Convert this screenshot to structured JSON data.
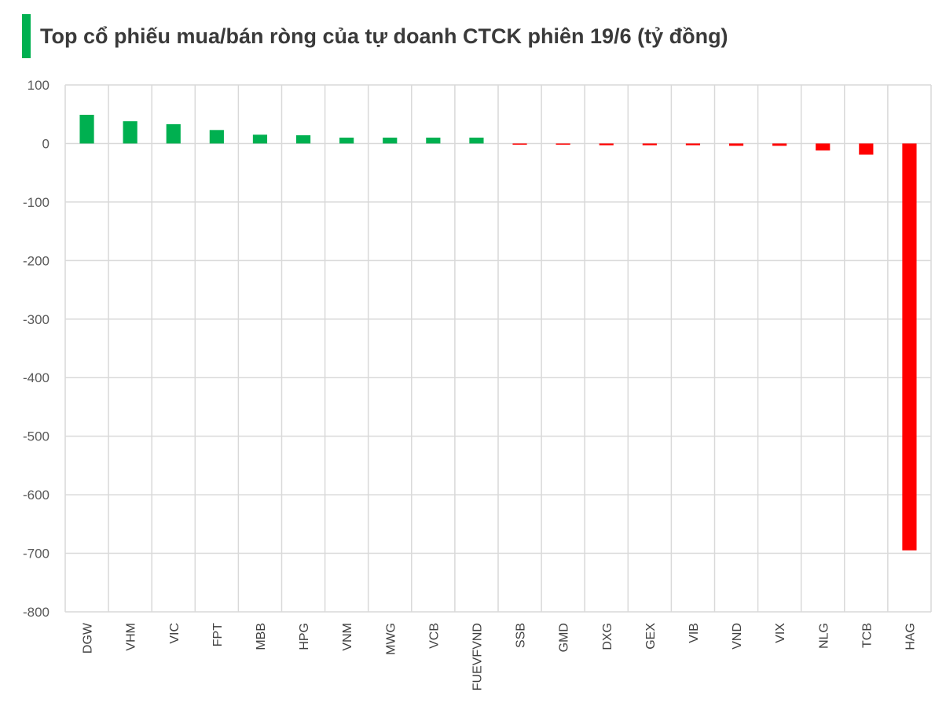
{
  "title": "Top cổ phiếu mua/bán ròng của tự doanh CTCK phiên 19/6 (tỷ đồng)",
  "colors": {
    "accent": "#00b050",
    "positive": "#00b050",
    "negative": "#ff0000",
    "grid": "#d9d9d9"
  },
  "chart_data": {
    "type": "bar",
    "title": "Top cổ phiếu mua/bán ròng của tự doanh CTCK phiên 19/6 (tỷ đồng)",
    "xlabel": "",
    "ylabel": "",
    "ylim": [
      -800,
      100
    ],
    "yticks": [
      100,
      0,
      -100,
      -200,
      -300,
      -400,
      -500,
      -600,
      -700,
      -800
    ],
    "grid": true,
    "legend": "none",
    "categories": [
      "DGW",
      "VHM",
      "VIC",
      "FPT",
      "MBB",
      "HPG",
      "VNM",
      "MWG",
      "VCB",
      "FUEVFVND",
      "SSB",
      "GMD",
      "DXG",
      "GEX",
      "VIB",
      "VND",
      "VIX",
      "NLG",
      "TCB",
      "HAG"
    ],
    "values": [
      49,
      38,
      33,
      23,
      15,
      14,
      10,
      10,
      10,
      10,
      -1,
      -1,
      -3,
      -3,
      -3,
      -4,
      -4,
      -12,
      -19,
      -695
    ]
  }
}
